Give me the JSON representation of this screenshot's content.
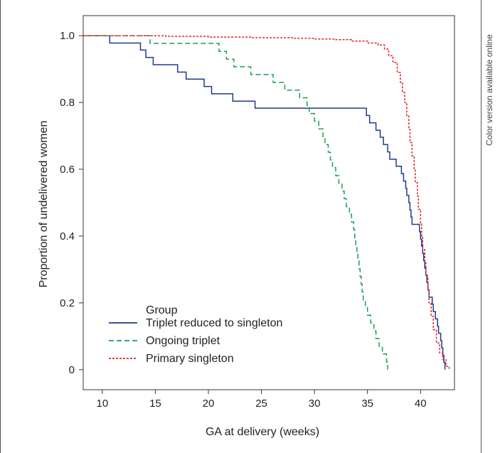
{
  "side_note": "Color version available online",
  "chart_data": {
    "type": "line",
    "step": true,
    "xlabel": "GA at delivery (weeks)",
    "ylabel": "Proportion of undelivered women",
    "xlim": [
      8.2,
      43.2
    ],
    "ylim": [
      -0.06,
      1.06
    ],
    "xticks": [
      10,
      15,
      20,
      25,
      30,
      35,
      40
    ],
    "yticks": [
      0,
      0.2,
      0.4,
      0.6,
      0.8,
      1.0
    ],
    "ytick_labels": [
      "0",
      "0.2",
      "0.4",
      "0.6",
      "0.8",
      "1.0"
    ],
    "legend": {
      "title": "Group",
      "placement": "bottom-left"
    },
    "series": [
      {
        "name": "Triplet reduced to singleton",
        "color": "#1f3a8a",
        "style": "solid",
        "points": [
          [
            8.2,
            1.0
          ],
          [
            10.7,
            1.0
          ],
          [
            10.7,
            0.978
          ],
          [
            13.6,
            0.978
          ],
          [
            13.6,
            0.957
          ],
          [
            14.1,
            0.957
          ],
          [
            14.1,
            0.935
          ],
          [
            14.8,
            0.935
          ],
          [
            14.8,
            0.913
          ],
          [
            17.1,
            0.913
          ],
          [
            17.1,
            0.891
          ],
          [
            17.9,
            0.891
          ],
          [
            17.9,
            0.87
          ],
          [
            19.6,
            0.87
          ],
          [
            19.6,
            0.848
          ],
          [
            20.3,
            0.848
          ],
          [
            20.3,
            0.826
          ],
          [
            22.3,
            0.826
          ],
          [
            22.3,
            0.804
          ],
          [
            24.4,
            0.804
          ],
          [
            24.4,
            0.783
          ],
          [
            34.9,
            0.783
          ],
          [
            34.9,
            0.761
          ],
          [
            35.2,
            0.761
          ],
          [
            35.2,
            0.739
          ],
          [
            35.8,
            0.739
          ],
          [
            35.8,
            0.717
          ],
          [
            36.2,
            0.717
          ],
          [
            36.2,
            0.696
          ],
          [
            36.5,
            0.696
          ],
          [
            36.5,
            0.674
          ],
          [
            36.9,
            0.674
          ],
          [
            36.9,
            0.652
          ],
          [
            37.1,
            0.652
          ],
          [
            37.1,
            0.63
          ],
          [
            37.7,
            0.63
          ],
          [
            37.7,
            0.609
          ],
          [
            38.2,
            0.609
          ],
          [
            38.2,
            0.587
          ],
          [
            38.4,
            0.587
          ],
          [
            38.4,
            0.565
          ],
          [
            38.6,
            0.565
          ],
          [
            38.6,
            0.543
          ],
          [
            38.7,
            0.543
          ],
          [
            38.7,
            0.522
          ],
          [
            38.9,
            0.522
          ],
          [
            38.9,
            0.5
          ],
          [
            39.0,
            0.5
          ],
          [
            39.0,
            0.478
          ],
          [
            39.1,
            0.478
          ],
          [
            39.1,
            0.457
          ],
          [
            39.2,
            0.457
          ],
          [
            39.2,
            0.435
          ],
          [
            39.9,
            0.435
          ],
          [
            39.9,
            0.413
          ],
          [
            40.0,
            0.413
          ],
          [
            40.0,
            0.391
          ],
          [
            40.1,
            0.391
          ],
          [
            40.1,
            0.37
          ],
          [
            40.2,
            0.37
          ],
          [
            40.2,
            0.348
          ],
          [
            40.3,
            0.348
          ],
          [
            40.3,
            0.326
          ],
          [
            40.4,
            0.326
          ],
          [
            40.4,
            0.304
          ],
          [
            40.5,
            0.304
          ],
          [
            40.5,
            0.283
          ],
          [
            40.6,
            0.283
          ],
          [
            40.6,
            0.261
          ],
          [
            40.7,
            0.261
          ],
          [
            40.7,
            0.239
          ],
          [
            40.8,
            0.239
          ],
          [
            40.8,
            0.217
          ],
          [
            41.1,
            0.217
          ],
          [
            41.1,
            0.196
          ],
          [
            41.2,
            0.196
          ],
          [
            41.2,
            0.174
          ],
          [
            41.4,
            0.174
          ],
          [
            41.4,
            0.152
          ],
          [
            41.6,
            0.152
          ],
          [
            41.6,
            0.13
          ],
          [
            41.7,
            0.13
          ],
          [
            41.7,
            0.109
          ],
          [
            41.9,
            0.109
          ],
          [
            41.9,
            0.087
          ],
          [
            42.0,
            0.087
          ],
          [
            42.0,
            0.065
          ],
          [
            42.1,
            0.065
          ],
          [
            42.1,
            0.043
          ],
          [
            42.2,
            0.043
          ],
          [
            42.2,
            0.022
          ],
          [
            42.3,
            0.022
          ],
          [
            42.3,
            0.0
          ]
        ]
      },
      {
        "name": "Ongoing triplet",
        "color": "#1f9d55",
        "style": "dashed",
        "points": [
          [
            8.2,
            1.0
          ],
          [
            14.5,
            1.0
          ],
          [
            14.5,
            0.977
          ],
          [
            21.0,
            0.977
          ],
          [
            21.0,
            0.953
          ],
          [
            21.7,
            0.953
          ],
          [
            21.7,
            0.93
          ],
          [
            22.4,
            0.93
          ],
          [
            22.4,
            0.907
          ],
          [
            24.0,
            0.907
          ],
          [
            24.0,
            0.884
          ],
          [
            26.1,
            0.884
          ],
          [
            26.1,
            0.86
          ],
          [
            27.2,
            0.86
          ],
          [
            27.2,
            0.837
          ],
          [
            28.6,
            0.837
          ],
          [
            28.6,
            0.814
          ],
          [
            29.3,
            0.814
          ],
          [
            29.3,
            0.791
          ],
          [
            29.5,
            0.791
          ],
          [
            29.5,
            0.767
          ],
          [
            30.0,
            0.767
          ],
          [
            30.0,
            0.744
          ],
          [
            30.4,
            0.744
          ],
          [
            30.4,
            0.721
          ],
          [
            30.8,
            0.721
          ],
          [
            30.8,
            0.698
          ],
          [
            31.0,
            0.698
          ],
          [
            31.0,
            0.674
          ],
          [
            31.3,
            0.674
          ],
          [
            31.3,
            0.651
          ],
          [
            31.5,
            0.651
          ],
          [
            31.5,
            0.628
          ],
          [
            31.7,
            0.628
          ],
          [
            31.7,
            0.605
          ],
          [
            32.0,
            0.605
          ],
          [
            32.0,
            0.581
          ],
          [
            32.3,
            0.581
          ],
          [
            32.3,
            0.558
          ],
          [
            32.6,
            0.558
          ],
          [
            32.6,
            0.535
          ],
          [
            32.8,
            0.535
          ],
          [
            32.8,
            0.512
          ],
          [
            33.0,
            0.512
          ],
          [
            33.0,
            0.488
          ],
          [
            33.3,
            0.488
          ],
          [
            33.3,
            0.465
          ],
          [
            33.5,
            0.465
          ],
          [
            33.5,
            0.442
          ],
          [
            33.7,
            0.442
          ],
          [
            33.7,
            0.419
          ],
          [
            33.8,
            0.419
          ],
          [
            33.8,
            0.395
          ],
          [
            33.9,
            0.395
          ],
          [
            33.9,
            0.372
          ],
          [
            34.0,
            0.372
          ],
          [
            34.0,
            0.349
          ],
          [
            34.1,
            0.349
          ],
          [
            34.1,
            0.326
          ],
          [
            34.2,
            0.326
          ],
          [
            34.2,
            0.302
          ],
          [
            34.3,
            0.302
          ],
          [
            34.3,
            0.279
          ],
          [
            34.4,
            0.279
          ],
          [
            34.4,
            0.256
          ],
          [
            34.5,
            0.256
          ],
          [
            34.5,
            0.233
          ],
          [
            34.6,
            0.233
          ],
          [
            34.6,
            0.209
          ],
          [
            34.8,
            0.209
          ],
          [
            34.8,
            0.186
          ],
          [
            35.0,
            0.186
          ],
          [
            35.0,
            0.163
          ],
          [
            35.3,
            0.163
          ],
          [
            35.3,
            0.14
          ],
          [
            35.6,
            0.14
          ],
          [
            35.6,
            0.116
          ],
          [
            35.8,
            0.116
          ],
          [
            35.8,
            0.093
          ],
          [
            36.1,
            0.093
          ],
          [
            36.1,
            0.07
          ],
          [
            36.4,
            0.07
          ],
          [
            36.4,
            0.047
          ],
          [
            36.8,
            0.047
          ],
          [
            36.8,
            0.023
          ],
          [
            36.9,
            0.023
          ],
          [
            36.9,
            0.0
          ]
        ]
      },
      {
        "name": "Primary singleton",
        "color": "#e0242a",
        "style": "dotted",
        "points": [
          [
            8.2,
            1.0
          ],
          [
            16.0,
            1.0
          ],
          [
            16.0,
            0.998
          ],
          [
            20.0,
            0.998
          ],
          [
            20.0,
            0.996
          ],
          [
            24.0,
            0.996
          ],
          [
            24.0,
            0.994
          ],
          [
            28.0,
            0.994
          ],
          [
            28.0,
            0.992
          ],
          [
            30.0,
            0.992
          ],
          [
            30.0,
            0.99
          ],
          [
            32.0,
            0.99
          ],
          [
            32.0,
            0.988
          ],
          [
            33.5,
            0.988
          ],
          [
            33.5,
            0.984
          ],
          [
            35.0,
            0.984
          ],
          [
            35.0,
            0.978
          ],
          [
            36.0,
            0.978
          ],
          [
            36.0,
            0.972
          ],
          [
            36.6,
            0.972
          ],
          [
            36.6,
            0.96
          ],
          [
            37.0,
            0.96
          ],
          [
            37.0,
            0.94
          ],
          [
            37.4,
            0.94
          ],
          [
            37.4,
            0.92
          ],
          [
            37.8,
            0.92
          ],
          [
            37.8,
            0.89
          ],
          [
            38.1,
            0.89
          ],
          [
            38.1,
            0.86
          ],
          [
            38.3,
            0.86
          ],
          [
            38.3,
            0.83
          ],
          [
            38.5,
            0.83
          ],
          [
            38.5,
            0.8
          ],
          [
            38.7,
            0.8
          ],
          [
            38.7,
            0.76
          ],
          [
            38.9,
            0.76
          ],
          [
            38.9,
            0.72
          ],
          [
            39.0,
            0.72
          ],
          [
            39.0,
            0.68
          ],
          [
            39.2,
            0.68
          ],
          [
            39.2,
            0.64
          ],
          [
            39.4,
            0.64
          ],
          [
            39.4,
            0.6
          ],
          [
            39.5,
            0.6
          ],
          [
            39.5,
            0.56
          ],
          [
            39.7,
            0.56
          ],
          [
            39.7,
            0.52
          ],
          [
            39.8,
            0.52
          ],
          [
            39.8,
            0.48
          ],
          [
            40.0,
            0.48
          ],
          [
            40.0,
            0.44
          ],
          [
            40.1,
            0.44
          ],
          [
            40.1,
            0.4
          ],
          [
            40.2,
            0.4
          ],
          [
            40.2,
            0.36
          ],
          [
            40.4,
            0.36
          ],
          [
            40.4,
            0.32
          ],
          [
            40.5,
            0.32
          ],
          [
            40.5,
            0.28
          ],
          [
            40.7,
            0.28
          ],
          [
            40.7,
            0.24
          ],
          [
            40.8,
            0.24
          ],
          [
            40.8,
            0.2
          ],
          [
            41.0,
            0.2
          ],
          [
            41.0,
            0.16
          ],
          [
            41.2,
            0.16
          ],
          [
            41.2,
            0.12
          ],
          [
            41.5,
            0.12
          ],
          [
            41.5,
            0.08
          ],
          [
            41.8,
            0.08
          ],
          [
            41.8,
            0.05
          ],
          [
            42.1,
            0.05
          ],
          [
            42.1,
            0.03
          ],
          [
            42.4,
            0.03
          ],
          [
            42.4,
            0.01
          ],
          [
            42.7,
            0.01
          ],
          [
            42.7,
            0.0
          ]
        ]
      }
    ]
  }
}
